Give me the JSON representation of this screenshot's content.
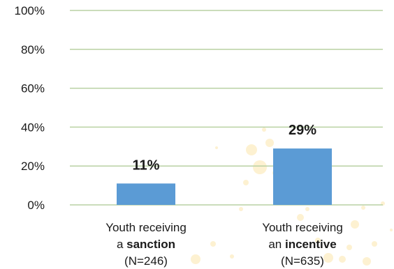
{
  "chart_data": {
    "type": "bar",
    "title": "",
    "xlabel": "",
    "ylabel": "",
    "ylim": [
      0,
      100
    ],
    "yticks": [
      0,
      20,
      40,
      60,
      80,
      100
    ],
    "ytick_labels": [
      "0%",
      "20%",
      "40%",
      "60%",
      "80%",
      "100%"
    ],
    "grid": true,
    "bar_color": "#5b9bd5",
    "grid_color": "#b9d1a3",
    "categories": [
      {
        "line1": "Youth receiving",
        "line2_prefix": "a ",
        "line2_bold": "sanction",
        "line3": "(N=246)"
      },
      {
        "line1": "Youth receiving",
        "line2_prefix": "an ",
        "line2_bold": "incentive",
        "line3": "(N=635)"
      }
    ],
    "values": [
      11,
      29
    ],
    "data_labels": [
      "11%",
      "29%"
    ]
  }
}
